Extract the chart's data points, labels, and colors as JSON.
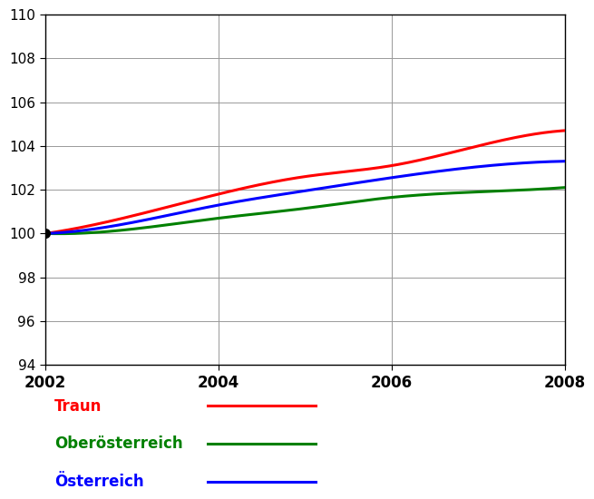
{
  "years": [
    2002,
    2003,
    2004,
    2005,
    2006,
    2007,
    2008
  ],
  "traun": [
    100.0,
    100.8,
    101.8,
    102.6,
    103.1,
    104.0,
    104.7
  ],
  "oberoesterreich": [
    100.0,
    100.2,
    100.7,
    101.15,
    101.65,
    101.9,
    102.1
  ],
  "oesterreich": [
    100.0,
    100.5,
    101.3,
    101.95,
    102.55,
    103.05,
    103.3
  ],
  "traun_color": "#ff0000",
  "oberoesterreich_color": "#008000",
  "oesterreich_color": "#0000ff",
  "traun_label": "Traun",
  "oberoesterreich_label": "Oberösterreich",
  "oesterreich_label": "Österreich",
  "ylim": [
    94,
    110
  ],
  "yticks": [
    94,
    96,
    98,
    100,
    102,
    104,
    106,
    108,
    110
  ],
  "xlim_min": 2002,
  "xlim_max": 2008,
  "xticks": [
    2002,
    2004,
    2006,
    2008
  ],
  "linewidth": 2.2,
  "marker_size": 7,
  "background_color": "#ffffff",
  "grid_color": "#999999",
  "tick_label_color": "#000000"
}
